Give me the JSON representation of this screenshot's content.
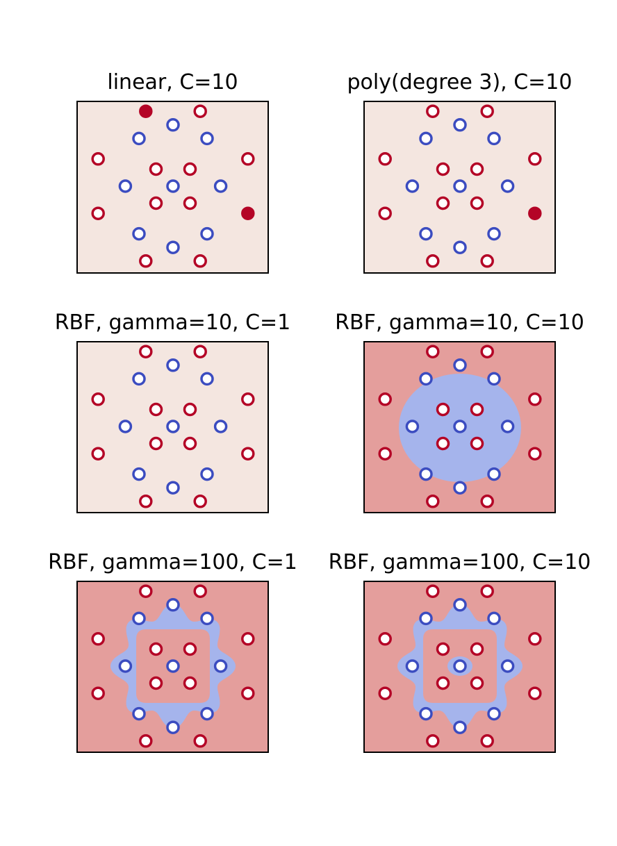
{
  "colors": {
    "class_pos": "#b40426",
    "class_neg": "#3b4cc0",
    "region_pos": "#e49e9c",
    "region_neg": "#a5b4ec",
    "region_uniform": "#f4e6e0",
    "frame": "#000000"
  },
  "chart_data": [
    {
      "type": "scatter",
      "title": "linear, C=10",
      "decision_region": "uniform",
      "support_vectors": [
        [
          -0.4,
          1.1
        ],
        [
          1.1,
          -0.4
        ]
      ]
    },
    {
      "type": "scatter",
      "title": "poly(degree 3), C=10",
      "decision_region": "uniform",
      "support_vectors": [
        [
          1.1,
          -0.4
        ]
      ]
    },
    {
      "type": "scatter",
      "title": "RBF, gamma=10, C=1",
      "decision_region": "uniform",
      "support_vectors": []
    },
    {
      "type": "scatter",
      "title": "RBF, gamma=10, C=10",
      "decision_region": "ellipse",
      "support_vectors": []
    },
    {
      "type": "scatter",
      "title": "RBF, gamma=100, C=1",
      "decision_region": "wavy-ring",
      "support_vectors": []
    },
    {
      "type": "scatter",
      "title": "RBF, gamma=100, C=10",
      "decision_region": "wavy-ring-with-center",
      "support_vectors": []
    }
  ],
  "shared_points": {
    "class_pos": [
      [
        -0.4,
        1.1
      ],
      [
        0.4,
        1.1
      ],
      [
        -1.1,
        0.4
      ],
      [
        1.1,
        0.4
      ],
      [
        -1.1,
        -0.4
      ],
      [
        1.1,
        -0.4
      ],
      [
        -0.4,
        -1.1
      ],
      [
        0.4,
        -1.1
      ],
      [
        -0.25,
        0.25
      ],
      [
        0.25,
        0.25
      ],
      [
        -0.25,
        -0.25
      ],
      [
        0.25,
        -0.25
      ]
    ],
    "class_neg": [
      [
        0,
        0.9
      ],
      [
        -0.5,
        0.7
      ],
      [
        0.5,
        0.7
      ],
      [
        -0.7,
        0
      ],
      [
        0.7,
        0
      ],
      [
        -0.5,
        -0.7
      ],
      [
        0.5,
        -0.7
      ],
      [
        0,
        -0.9
      ],
      [
        0,
        0
      ]
    ]
  }
}
